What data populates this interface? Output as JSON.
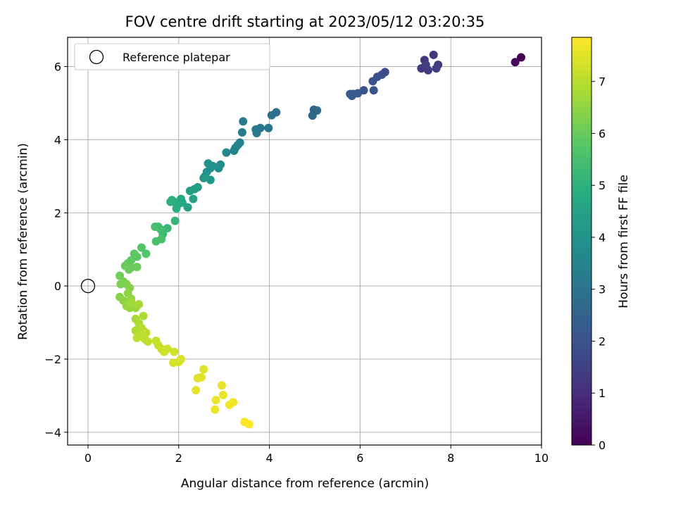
{
  "chart_data": {
    "type": "scatter",
    "title": "FOV centre drift starting at 2023/05/12 03:20:35",
    "xlabel": "Angular distance from reference (arcmin)",
    "ylabel": "Rotation from reference (arcmin)",
    "xlim": [
      -0.45,
      10.0
    ],
    "ylim": [
      -4.35,
      6.8
    ],
    "xticks": [
      0,
      2,
      4,
      6,
      8,
      10
    ],
    "yticks": [
      -4,
      -2,
      0,
      2,
      4,
      6
    ],
    "grid": true,
    "legend": {
      "placement": "top-left",
      "entries": [
        "Reference platepar"
      ]
    },
    "reference_point": {
      "x": 0,
      "y": 0,
      "label": "Reference platepar"
    },
    "colorbar": {
      "label": "Hours from first FF file",
      "colormap": "viridis",
      "range": [
        0,
        7.85
      ],
      "ticks": [
        0,
        1,
        2,
        3,
        4,
        5,
        6,
        7
      ]
    },
    "points": [
      [
        9.55,
        6.25,
        0.0
      ],
      [
        9.42,
        6.12,
        0.15
      ],
      [
        7.62,
        6.32,
        1.2
      ],
      [
        7.42,
        6.18,
        1.25
      ],
      [
        7.35,
        5.95,
        1.3
      ],
      [
        7.5,
        5.9,
        1.35
      ],
      [
        7.72,
        6.05,
        1.3
      ],
      [
        7.45,
        6.05,
        1.4
      ],
      [
        7.68,
        5.95,
        1.45
      ],
      [
        6.55,
        5.85,
        1.8
      ],
      [
        6.48,
        5.78,
        1.85
      ],
      [
        6.38,
        5.72,
        1.9
      ],
      [
        6.28,
        5.6,
        2.0
      ],
      [
        6.3,
        5.35,
        2.05
      ],
      [
        6.08,
        5.35,
        2.1
      ],
      [
        5.95,
        5.27,
        2.15
      ],
      [
        5.85,
        5.25,
        2.2
      ],
      [
        5.78,
        5.25,
        2.25
      ],
      [
        5.82,
        5.2,
        2.3
      ],
      [
        4.98,
        4.82,
        2.55
      ],
      [
        5.05,
        4.8,
        2.6
      ],
      [
        4.95,
        4.66,
        2.65
      ],
      [
        4.15,
        4.75,
        2.85
      ],
      [
        4.05,
        4.67,
        2.9
      ],
      [
        3.98,
        4.32,
        3.0
      ],
      [
        3.8,
        4.32,
        3.05
      ],
      [
        3.7,
        4.28,
        3.1
      ],
      [
        3.72,
        4.18,
        3.15
      ],
      [
        3.42,
        4.5,
        3.2
      ],
      [
        3.4,
        4.2,
        3.25
      ],
      [
        3.35,
        3.92,
        3.4
      ],
      [
        3.3,
        3.85,
        3.45
      ],
      [
        3.25,
        3.78,
        3.5
      ],
      [
        3.22,
        3.7,
        3.55
      ],
      [
        3.05,
        3.65,
        3.6
      ],
      [
        2.92,
        3.32,
        3.75
      ],
      [
        2.88,
        3.22,
        3.8
      ],
      [
        2.75,
        3.28,
        3.85
      ],
      [
        2.7,
        3.22,
        3.9
      ],
      [
        2.65,
        3.35,
        3.95
      ],
      [
        2.62,
        3.12,
        4.0
      ],
      [
        2.58,
        3.0,
        4.05
      ],
      [
        2.7,
        2.9,
        4.1
      ],
      [
        2.55,
        2.95,
        4.15
      ],
      [
        2.42,
        2.7,
        4.3
      ],
      [
        2.35,
        2.65,
        4.35
      ],
      [
        2.25,
        2.6,
        4.4
      ],
      [
        2.32,
        2.38,
        4.45
      ],
      [
        2.2,
        2.15,
        4.5
      ],
      [
        2.08,
        2.28,
        4.7
      ],
      [
        2.05,
        2.38,
        4.75
      ],
      [
        2.0,
        2.25,
        4.8
      ],
      [
        1.95,
        2.12,
        4.85
      ],
      [
        1.9,
        2.3,
        4.9
      ],
      [
        1.85,
        2.35,
        4.95
      ],
      [
        1.82,
        2.3,
        5.0
      ],
      [
        1.92,
        1.78,
        5.2
      ],
      [
        1.75,
        1.58,
        5.25
      ],
      [
        1.65,
        1.42,
        5.3
      ],
      [
        1.6,
        1.55,
        5.35
      ],
      [
        1.55,
        1.62,
        5.4
      ],
      [
        1.48,
        1.62,
        5.45
      ],
      [
        1.62,
        1.28,
        5.5
      ],
      [
        1.5,
        1.22,
        5.55
      ],
      [
        1.28,
        0.88,
        5.7
      ],
      [
        1.18,
        1.05,
        5.75
      ],
      [
        1.08,
        0.8,
        5.8
      ],
      [
        1.02,
        0.88,
        5.85
      ],
      [
        0.95,
        0.7,
        5.9
      ],
      [
        0.88,
        0.62,
        5.95
      ],
      [
        0.82,
        0.55,
        6.0
      ],
      [
        1.08,
        0.52,
        6.05
      ],
      [
        0.95,
        0.5,
        6.0
      ],
      [
        0.9,
        0.45,
        6.05
      ],
      [
        0.7,
        0.28,
        6.15
      ],
      [
        0.78,
        0.12,
        6.2
      ],
      [
        0.72,
        0.05,
        6.25
      ],
      [
        0.85,
        0.05,
        6.3
      ],
      [
        0.92,
        -0.05,
        6.35
      ],
      [
        0.7,
        -0.3,
        6.4
      ],
      [
        0.78,
        -0.4,
        6.45
      ],
      [
        0.88,
        -0.2,
        6.5
      ],
      [
        0.95,
        -0.35,
        6.55
      ],
      [
        0.85,
        -0.55,
        6.6
      ],
      [
        0.98,
        -0.55,
        6.6
      ],
      [
        1.05,
        -0.6,
        6.65
      ],
      [
        0.92,
        -0.6,
        6.6
      ],
      [
        0.95,
        -0.45,
        6.7
      ],
      [
        1.12,
        -0.5,
        6.75
      ],
      [
        1.05,
        -0.9,
        6.8
      ],
      [
        1.22,
        -0.82,
        6.85
      ],
      [
        1.12,
        -1.02,
        6.85
      ],
      [
        1.05,
        -1.22,
        6.9
      ],
      [
        1.18,
        -1.15,
        6.95
      ],
      [
        1.22,
        -1.22,
        7.0
      ],
      [
        1.15,
        -1.3,
        7.0
      ],
      [
        1.28,
        -1.28,
        7.05
      ],
      [
        1.08,
        -1.42,
        7.05
      ],
      [
        1.25,
        -1.45,
        7.1
      ],
      [
        1.32,
        -1.52,
        7.1
      ],
      [
        1.5,
        -1.5,
        7.15
      ],
      [
        1.55,
        -1.62,
        7.2
      ],
      [
        1.62,
        -1.72,
        7.2
      ],
      [
        1.68,
        -1.8,
        7.25
      ],
      [
        1.75,
        -1.72,
        7.25
      ],
      [
        1.9,
        -1.8,
        7.3
      ],
      [
        1.88,
        -2.1,
        7.35
      ],
      [
        2.05,
        -2.0,
        7.4
      ],
      [
        2.0,
        -2.08,
        7.4
      ],
      [
        2.55,
        -2.28,
        7.45
      ],
      [
        2.5,
        -2.5,
        7.5
      ],
      [
        2.42,
        -2.52,
        7.5
      ],
      [
        2.38,
        -2.85,
        7.55
      ],
      [
        2.95,
        -2.72,
        7.6
      ],
      [
        2.98,
        -2.98,
        7.6
      ],
      [
        2.82,
        -3.12,
        7.65
      ],
      [
        2.8,
        -3.38,
        7.65
      ],
      [
        3.2,
        -3.18,
        7.7
      ],
      [
        3.12,
        -3.25,
        7.7
      ],
      [
        3.45,
        -3.72,
        7.8
      ],
      [
        3.55,
        -3.78,
        7.85
      ]
    ]
  }
}
